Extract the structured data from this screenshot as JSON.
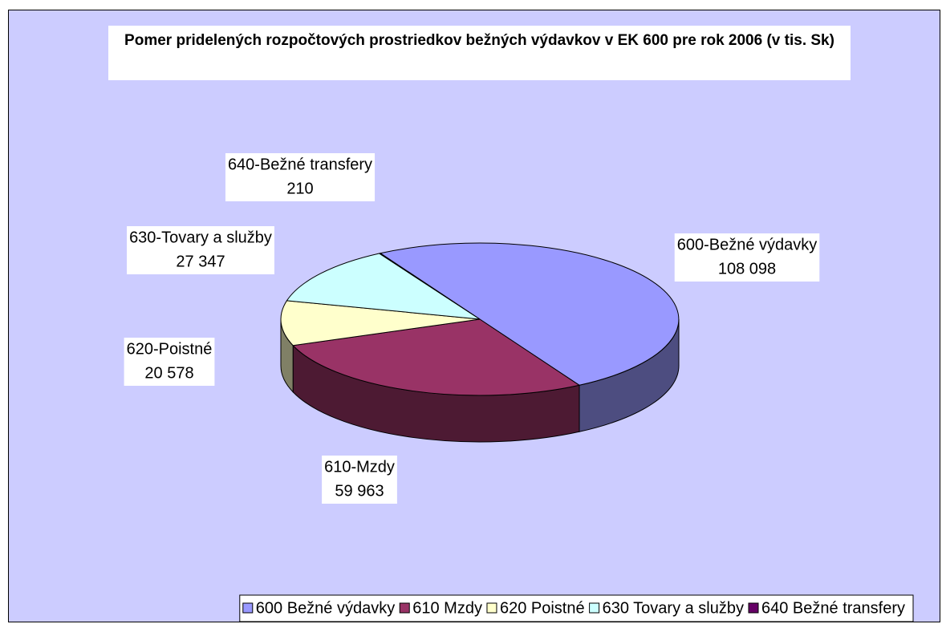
{
  "chart_data": {
    "type": "pie",
    "title": "Pomer pridelených rozpočtových prostriedkov bežných výdavkov v EK 600 pre rok 2006 (v tis. Sk)",
    "categories": [
      "600 Bežné výdavky",
      "610 Mzdy",
      "620 Poistné",
      "630 Tovary a služby",
      "640 Bežné transfery"
    ],
    "label_names": [
      "600-Bežné výdavky",
      "610-Mzdy",
      "620-Poistné",
      "630-Tovary a služby",
      "640-Bežné transfery"
    ],
    "values": [
      108098,
      59963,
      20578,
      27347,
      210
    ],
    "value_labels": [
      "108 098",
      "59 963",
      "20 578",
      "27 347",
      "210"
    ],
    "colors": [
      "#9999ff",
      "#993366",
      "#ffffcc",
      "#ccffff",
      "#660066"
    ],
    "legend": "bottom"
  }
}
